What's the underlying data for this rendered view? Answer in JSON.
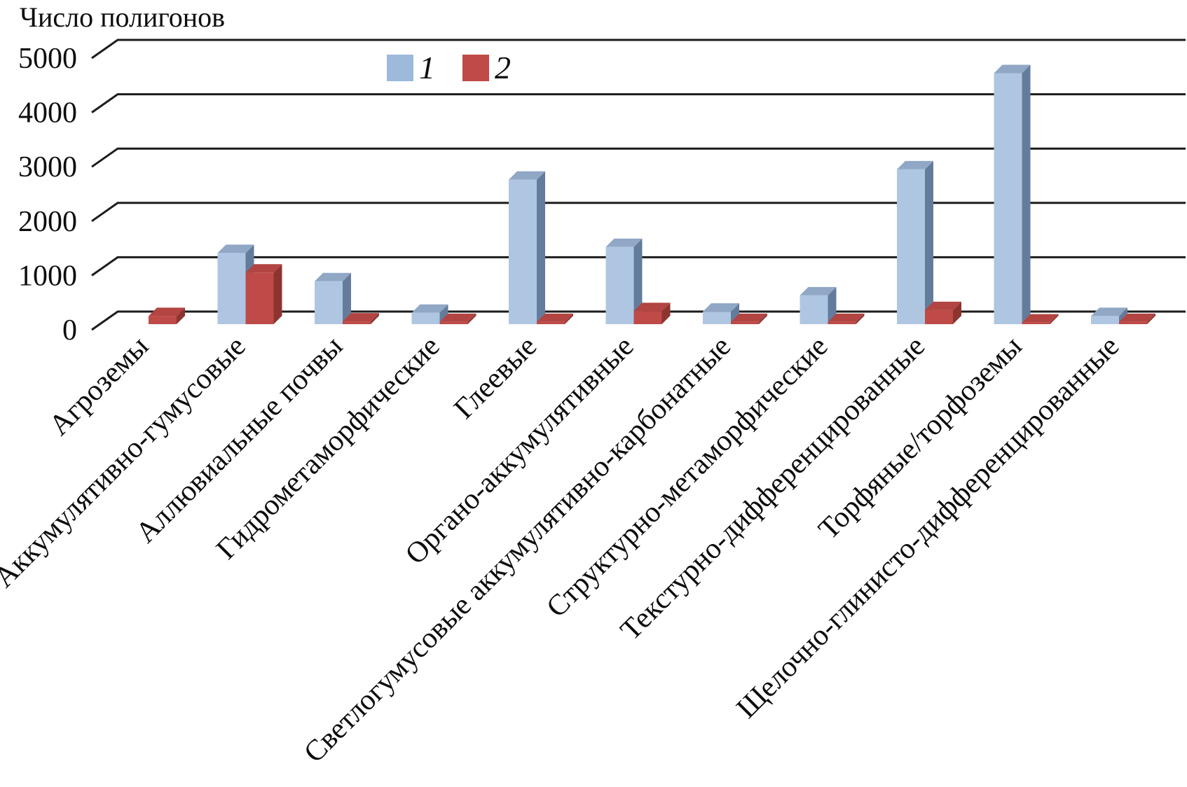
{
  "chart_data": {
    "type": "bar",
    "style": "3d-column-clustered",
    "title": "Число полигонов",
    "title_position": "top-left",
    "categories": [
      "Агроземы",
      "Аккумулятивно-гумусовые",
      "Аллювиальные почвы",
      "Гидрометаморфические",
      "Глеевые",
      "Органо-аккумулятивные",
      "Светлогумусовые аккумулятивно-карбонатные",
      "Структурно-метаморфические",
      "Текстурно-дифференцированные",
      "Торфяные/торфоземы",
      "Щелочно-глинисто-дифференцированные"
    ],
    "series": [
      {
        "name": "1",
        "color": "#9db9dc",
        "faces": {
          "front": "#afc6e3",
          "top": "#90a7c5",
          "side": "#647c9b"
        },
        "values": [
          0,
          1310,
          790,
          210,
          2660,
          1420,
          230,
          530,
          2850,
          4620,
          150
        ]
      },
      {
        "name": "2",
        "color": "#c04a47",
        "faces": {
          "front": "#be4b48",
          "top": "#b24441",
          "side": "#8d3431"
        },
        "values": [
          150,
          950,
          50,
          40,
          40,
          240,
          40,
          40,
          260,
          30,
          40
        ]
      }
    ],
    "ylim": [
      0,
      5000
    ],
    "yticks": [
      0,
      1000,
      2000,
      3000,
      4000,
      5000
    ],
    "grid": true,
    "gridline_color": "#1c1c1c",
    "legend_position": "top-center",
    "category_label_rotation_deg": -45
  }
}
